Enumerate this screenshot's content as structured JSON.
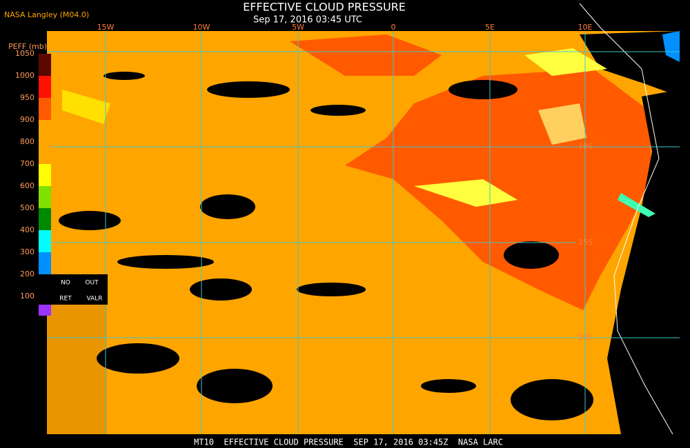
{
  "header": {
    "title": "EFFECTIVE CLOUD PRESSURE",
    "subtitle": "Sep 17, 2016 03:45 UTC",
    "source": "NASA Langley (M04.0)"
  },
  "colorbar": {
    "label": "PEFF (mb)",
    "ticks": [
      1050,
      1000,
      950,
      900,
      800,
      700,
      600,
      500,
      400,
      300,
      200,
      100
    ],
    "colors": [
      "#5a0800",
      "#ff1000",
      "#ff5a00",
      "#ffa500",
      "#ffa500",
      "#ffff00",
      "#80e000",
      "#008a00",
      "#00ffff",
      "#0090ff",
      "#0000ff",
      "#9933ff"
    ]
  },
  "legend": {
    "no_retrieval": [
      "NO",
      "RET"
    ],
    "out_valid": [
      "OUT",
      "VALR"
    ]
  },
  "map": {
    "lon_labels": [
      "15W",
      "10W",
      "5W",
      "0",
      "5E",
      "10E"
    ],
    "lat_labels": [
      "10S",
      "15S",
      "20S"
    ]
  },
  "footer": "MT10  EFFECTIVE CLOUD PRESSURE  SEP 17, 2016 03:45Z  NASA LARC"
}
